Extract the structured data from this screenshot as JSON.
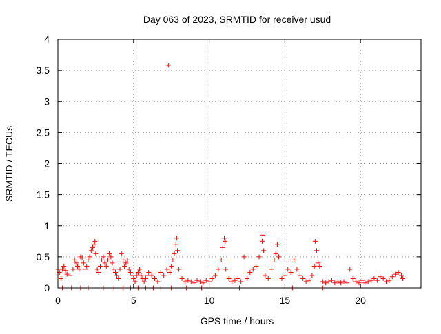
{
  "chart_data": {
    "type": "scatter",
    "title": "Day 063 of 2023, SRMTID for receiver usud",
    "xlabel": "GPS time / hours",
    "ylabel": "SRMTID / TECUs",
    "xlim": [
      0,
      24
    ],
    "ylim": [
      0,
      4
    ],
    "xticks": [
      0,
      5,
      10,
      15,
      20
    ],
    "xtick_labels": [
      "0",
      "5",
      "10",
      "15",
      "20"
    ],
    "yticks": [
      0,
      0.5,
      1,
      1.5,
      2,
      2.5,
      3,
      3.5,
      4
    ],
    "ytick_labels": [
      "0",
      "0.5",
      "1",
      "1.5",
      "2",
      "2.5",
      "3",
      "3.5",
      "4"
    ],
    "grid": true,
    "marker": "+",
    "color": "#ff0000",
    "series": [
      {
        "name": "usud",
        "x": [
          0.0,
          0.1,
          0.2,
          0.3,
          0.4,
          0.5,
          0.6,
          0.8,
          1.0,
          1.1,
          1.2,
          1.3,
          1.4,
          1.5,
          1.6,
          1.7,
          1.8,
          1.9,
          2.0,
          2.1,
          2.2,
          2.3,
          2.4,
          2.45,
          2.5,
          2.6,
          2.7,
          2.8,
          2.9,
          3.0,
          3.1,
          3.2,
          3.3,
          3.4,
          3.5,
          3.6,
          3.7,
          3.8,
          3.9,
          4.0,
          4.1,
          4.2,
          4.3,
          4.4,
          4.5,
          4.6,
          4.7,
          4.8,
          4.9,
          5.0,
          5.1,
          5.2,
          5.3,
          5.4,
          5.5,
          5.6,
          5.7,
          5.8,
          5.9,
          6.0,
          6.2,
          6.4,
          6.6,
          6.8,
          7.0,
          7.2,
          7.3,
          7.4,
          7.5,
          7.6,
          7.7,
          7.8,
          7.85,
          7.9,
          8.0,
          8.2,
          8.4,
          8.6,
          8.8,
          9.0,
          9.2,
          9.4,
          9.6,
          9.8,
          10.0,
          10.2,
          10.4,
          10.6,
          10.8,
          10.9,
          11.0,
          11.05,
          11.1,
          11.3,
          11.5,
          11.7,
          11.9,
          12.1,
          12.3,
          12.5,
          12.7,
          12.9,
          13.1,
          13.3,
          13.5,
          13.55,
          13.6,
          13.7,
          13.9,
          14.1,
          14.3,
          14.4,
          14.5,
          14.6,
          14.8,
          15.0,
          15.2,
          15.4,
          15.6,
          15.8,
          16.0,
          16.2,
          16.4,
          16.6,
          16.8,
          16.95,
          17.0,
          17.1,
          17.2,
          17.3,
          17.5,
          17.7,
          17.9,
          18.1,
          18.3,
          18.5,
          18.7,
          18.9,
          19.1,
          19.3,
          19.5,
          19.7,
          19.9,
          20.1,
          20.3,
          20.5,
          20.7,
          20.9,
          21.1,
          21.3,
          21.5,
          21.7,
          21.9,
          22.1,
          22.3,
          22.5,
          22.7,
          22.8,
          0.3,
          0.9,
          1.5,
          2.0,
          3.0,
          3.7,
          4.3,
          4.8,
          5.3,
          5.8,
          6.3,
          6.8,
          7.5,
          8.5,
          9.5,
          12.0,
          15.5,
          17.5
        ],
        "y": [
          0.3,
          0.25,
          0.15,
          0.3,
          0.35,
          0.28,
          0.22,
          0.2,
          0.3,
          0.45,
          0.4,
          0.35,
          0.3,
          0.5,
          0.48,
          0.4,
          0.3,
          0.35,
          0.45,
          0.5,
          0.6,
          0.65,
          0.7,
          0.75,
          0.55,
          0.3,
          0.25,
          0.35,
          0.45,
          0.5,
          0.4,
          0.35,
          0.45,
          0.55,
          0.5,
          0.4,
          0.3,
          0.25,
          0.2,
          0.15,
          0.3,
          0.55,
          0.45,
          0.35,
          0.4,
          0.45,
          0.3,
          0.25,
          0.2,
          0.15,
          0.1,
          0.2,
          0.25,
          0.3,
          0.2,
          0.15,
          0.1,
          0.15,
          0.2,
          0.25,
          0.2,
          0.15,
          0.1,
          0.25,
          0.2,
          0.3,
          3.58,
          0.25,
          0.35,
          0.45,
          0.55,
          0.7,
          0.8,
          0.6,
          0.3,
          0.15,
          0.1,
          0.12,
          0.1,
          0.08,
          0.12,
          0.1,
          0.08,
          0.12,
          0.1,
          0.15,
          0.2,
          0.3,
          0.45,
          0.65,
          0.8,
          0.75,
          0.3,
          0.15,
          0.1,
          0.12,
          0.15,
          0.1,
          0.5,
          0.15,
          0.25,
          0.3,
          0.35,
          0.5,
          0.75,
          0.85,
          0.6,
          0.2,
          0.15,
          0.3,
          0.45,
          0.55,
          0.7,
          0.5,
          0.15,
          0.2,
          0.3,
          0.25,
          0.45,
          0.3,
          0.2,
          0.15,
          0.1,
          0.12,
          0.2,
          0.35,
          0.75,
          0.6,
          0.4,
          0.35,
          0.1,
          0.08,
          0.1,
          0.12,
          0.08,
          0.1,
          0.08,
          0.1,
          0.08,
          0.3,
          0.15,
          0.1,
          0.08,
          0.12,
          0.08,
          0.1,
          0.12,
          0.15,
          0.12,
          0.18,
          0.15,
          0.1,
          0.12,
          0.18,
          0.22,
          0.25,
          0.2,
          0.15,
          0.0,
          0.0,
          0.0,
          0.0,
          0.0,
          0.0,
          0.0,
          0.0,
          0.0,
          0.0,
          0.0,
          0.0,
          0.0,
          0.0,
          0.0,
          0.0,
          0.0,
          0.0
        ]
      }
    ]
  }
}
